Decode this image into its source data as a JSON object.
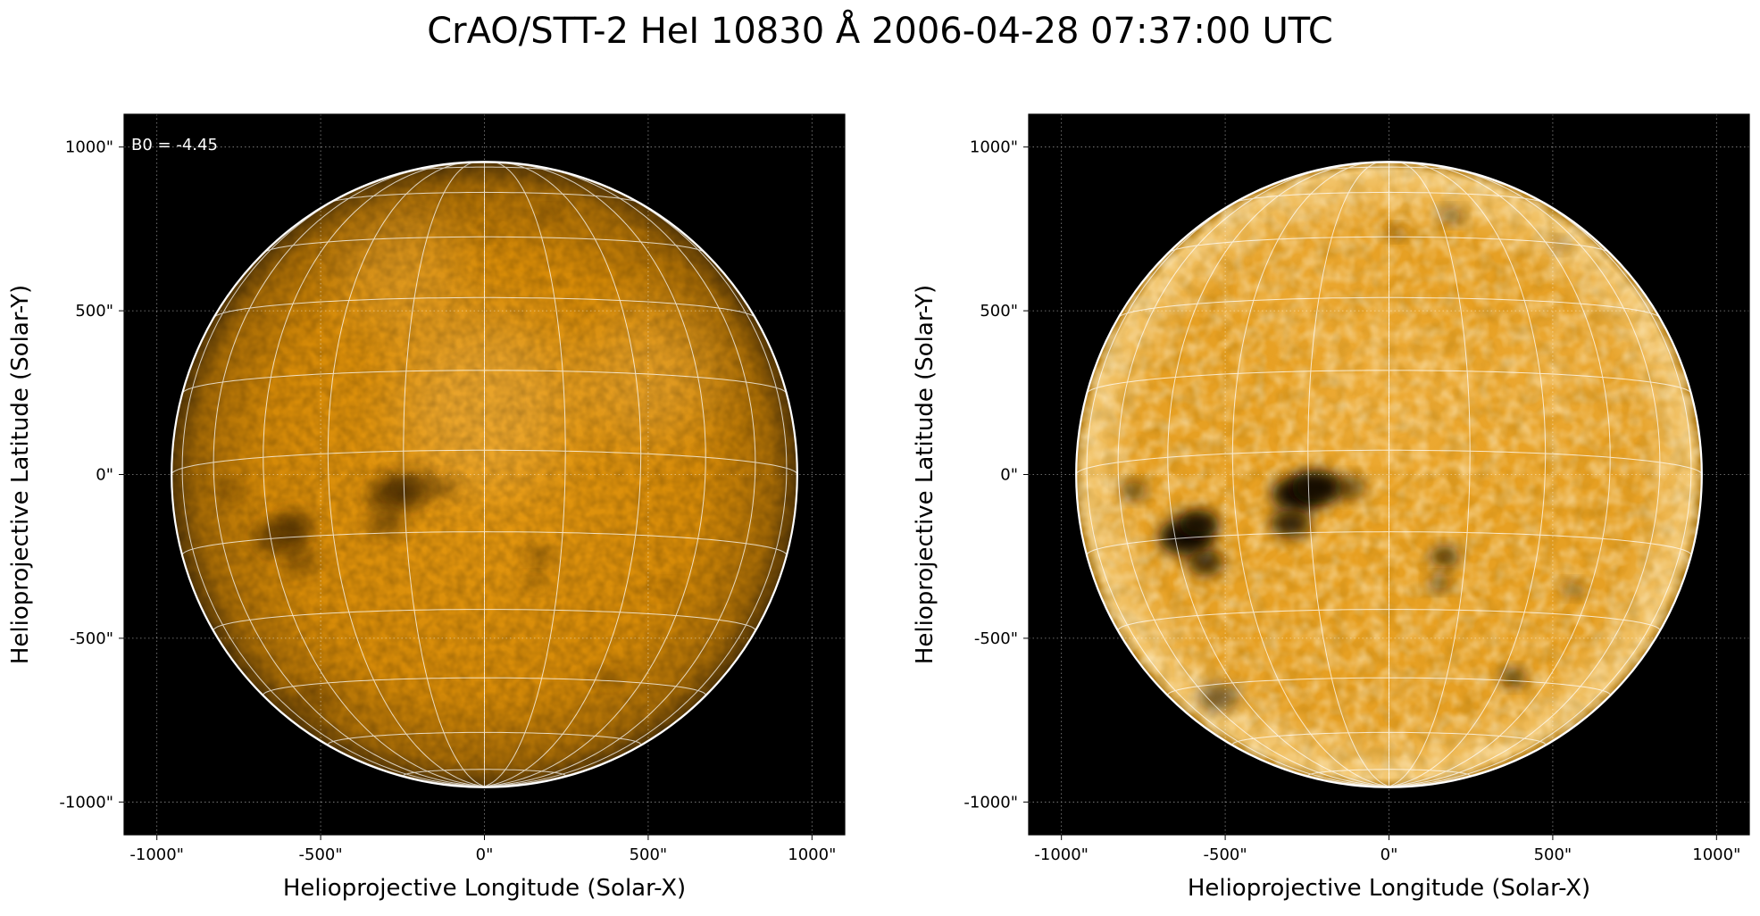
{
  "figure": {
    "title": "CrAO/STT-2 HeI 10830 Å 2006-04-28 07:37:00 UTC"
  },
  "colors": {
    "background": "#000000",
    "disk_mid": "#e0940a",
    "disk_limb": "#5a3a06",
    "grid": "#ffffff",
    "limb_circle": "#ffffff"
  },
  "panels": [
    {
      "id": "left",
      "annotation": "B0 = -4.45",
      "contrast": "low",
      "xlabel": "Helioprojective Longitude (Solar-X)",
      "ylabel": "Helioprojective Latitude (Solar-Y)",
      "xticks": [
        {
          "value": -1000,
          "label": "-1000\""
        },
        {
          "value": -500,
          "label": "-500\""
        },
        {
          "value": 0,
          "label": "0\""
        },
        {
          "value": 500,
          "label": "500\""
        },
        {
          "value": 1000,
          "label": "1000\""
        }
      ],
      "yticks": [
        {
          "value": 1000,
          "label": "1000\""
        },
        {
          "value": 500,
          "label": "500\""
        },
        {
          "value": 0,
          "label": "0\""
        },
        {
          "value": -500,
          "label": "-500\""
        },
        {
          "value": -1000,
          "label": "-1000\""
        }
      ]
    },
    {
      "id": "right",
      "annotation": "",
      "contrast": "high",
      "xlabel": "Helioprojective Longitude (Solar-X)",
      "ylabel": "Helioprojective Latitude (Solar-Y)",
      "xticks": [
        {
          "value": -1000,
          "label": "-1000\""
        },
        {
          "value": -500,
          "label": "-500\""
        },
        {
          "value": 0,
          "label": "0\""
        },
        {
          "value": 500,
          "label": "500\""
        },
        {
          "value": 1000,
          "label": "1000\""
        }
      ],
      "yticks": [
        {
          "value": 1000,
          "label": "1000\""
        },
        {
          "value": 500,
          "label": "500\""
        },
        {
          "value": 0,
          "label": "0\""
        },
        {
          "value": -500,
          "label": "-500\""
        },
        {
          "value": -1000,
          "label": "-1000\""
        }
      ]
    }
  ],
  "solar_disk": {
    "radius_arcsec": 955,
    "b0_deg": -4.45,
    "grid_spacing_deg": 15,
    "features": [
      {
        "x": -620,
        "y": -190,
        "r": 75,
        "strength": 0.85
      },
      {
        "x": -580,
        "y": -150,
        "r": 55,
        "strength": 0.7
      },
      {
        "x": -560,
        "y": -270,
        "r": 50,
        "strength": 0.6
      },
      {
        "x": -280,
        "y": -60,
        "r": 70,
        "strength": 0.9
      },
      {
        "x": -220,
        "y": -40,
        "r": 70,
        "strength": 0.75
      },
      {
        "x": -300,
        "y": -150,
        "r": 55,
        "strength": 0.65
      },
      {
        "x": -120,
        "y": -40,
        "r": 45,
        "strength": 0.45
      },
      {
        "x": -780,
        "y": -50,
        "r": 35,
        "strength": 0.5
      },
      {
        "x": 170,
        "y": -250,
        "r": 40,
        "strength": 0.55
      },
      {
        "x": 155,
        "y": -330,
        "r": 30,
        "strength": 0.5
      },
      {
        "x": 380,
        "y": -620,
        "r": 35,
        "strength": 0.55
      },
      {
        "x": -520,
        "y": -680,
        "r": 55,
        "strength": 0.4
      },
      {
        "x": 190,
        "y": 790,
        "r": 30,
        "strength": 0.45
      },
      {
        "x": 20,
        "y": 740,
        "r": 25,
        "strength": 0.35
      },
      {
        "x": 520,
        "y": 700,
        "r": 25,
        "strength": 0.3
      },
      {
        "x": 560,
        "y": -350,
        "r": 30,
        "strength": 0.35
      }
    ],
    "bright_regions": [
      {
        "x": 0,
        "y": 220,
        "r": 260,
        "strength": 0.35
      },
      {
        "x": 500,
        "y": 300,
        "r": 200,
        "strength": 0.3
      },
      {
        "x": -250,
        "y": 600,
        "r": 180,
        "strength": 0.25
      }
    ]
  }
}
